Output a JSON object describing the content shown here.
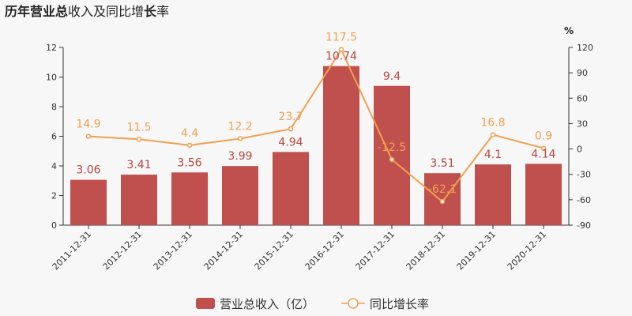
{
  "chart_data": {
    "type": "bar+line",
    "title": {
      "parts": [
        {
          "text": "历年",
          "bold": true
        },
        {
          "text": "营业总",
          "bold": true
        },
        {
          "text": "收入及同比增",
          "bold": false
        },
        {
          "text": "长",
          "bold": true
        },
        {
          "text": "率",
          "bold": false
        }
      ]
    },
    "categories": [
      "2011-12-31",
      "2012-12-31",
      "2013-12-31",
      "2014-12-31",
      "2015-12-31",
      "2016-12-31",
      "2017-12-31",
      "2018-12-31",
      "2019-12-31",
      "2020-12-31"
    ],
    "series": [
      {
        "name": "营业总收入（亿）",
        "type": "bar",
        "axis": "left",
        "values": [
          3.06,
          3.41,
          3.56,
          3.99,
          4.94,
          10.74,
          9.4,
          3.51,
          4.1,
          4.14
        ],
        "labels": [
          "3.06",
          "3.41",
          "3.56",
          "3.99",
          "4.94",
          "10.74",
          "9.4",
          "3.51",
          "4.1",
          "4.14"
        ],
        "color": "#c0504d"
      },
      {
        "name": "同比增长率",
        "type": "line",
        "axis": "right",
        "values": [
          14.9,
          11.5,
          4.4,
          12.2,
          23.7,
          117.5,
          -12.5,
          -62.1,
          16.8,
          0.9
        ],
        "labels": [
          "14.9",
          "11.5",
          "4.4",
          "12.2",
          "23.7",
          "117.5",
          "-12.5",
          "-62.1",
          "16.8",
          "0.9"
        ],
        "color": "#f0a050"
      }
    ],
    "left_axis": {
      "min": 0,
      "max": 12,
      "ticks": [
        0,
        2,
        4,
        6,
        8,
        10,
        12
      ]
    },
    "right_axis": {
      "unit": "%",
      "min": -90,
      "max": 120,
      "ticks": [
        -90,
        -60,
        -30,
        0,
        30,
        60,
        90,
        120
      ]
    },
    "legend": {
      "position": "bottom-center",
      "items": [
        "营业总收入（亿）",
        "同比增长率"
      ]
    }
  }
}
